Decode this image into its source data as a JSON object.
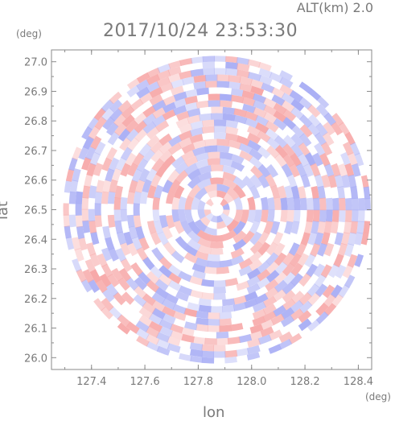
{
  "header": {
    "altitude": "ALT(km)  2.0",
    "timestamp": "2017/10/24  23:53:30"
  },
  "colors": {
    "positive": "#f7a9a9",
    "negative": "#a9aef5",
    "neutral": "#ffffff",
    "axis": "#8a8a8a"
  },
  "chart_data": {
    "type": "heatmap",
    "title": "",
    "xlabel": "lon",
    "ylabel": "lat",
    "x_unit": "(deg)",
    "y_unit": "(deg)",
    "xlim": [
      127.25,
      128.45
    ],
    "ylim": [
      25.96,
      27.04
    ],
    "x_ticks": [
      127.4,
      127.6,
      127.8,
      128.0,
      128.2,
      128.4
    ],
    "x_tick_labels": [
      "127.4",
      "127.6",
      "127.8",
      "128.0",
      "128.2",
      "128.4"
    ],
    "y_ticks": [
      26.0,
      26.1,
      26.2,
      26.3,
      26.4,
      26.5,
      26.6,
      26.7,
      26.8,
      26.9,
      27.0
    ],
    "y_tick_labels": [
      "26.0",
      "26.1",
      "26.2",
      "26.3",
      "26.4",
      "26.5",
      "26.6",
      "26.7",
      "26.8",
      "26.9",
      "27.0"
    ],
    "center": [
      127.87,
      26.5
    ],
    "radius_deg_lat": 0.52,
    "grid": false
  }
}
